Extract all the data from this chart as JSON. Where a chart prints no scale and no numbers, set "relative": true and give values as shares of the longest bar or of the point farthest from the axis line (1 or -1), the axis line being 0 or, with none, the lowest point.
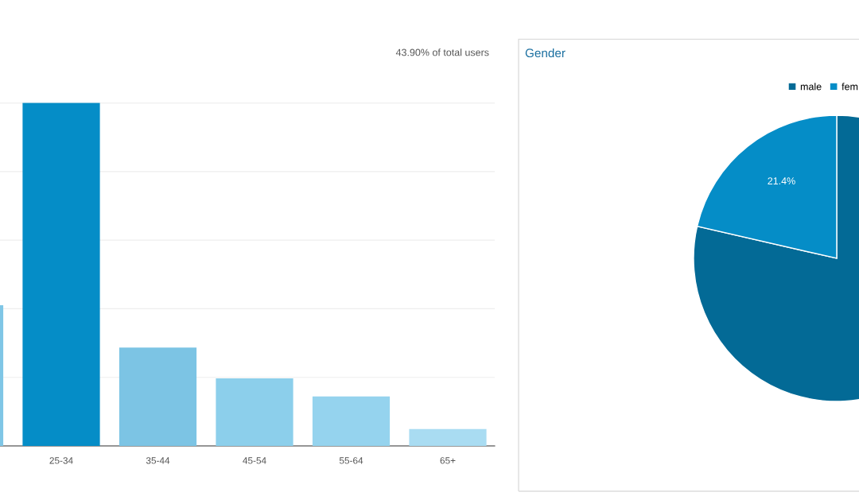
{
  "chart_data": [
    {
      "type": "bar",
      "relative": true,
      "categories": [
        null,
        "25-34",
        "35-44",
        "45-54",
        "55-64",
        "65+"
      ],
      "values": [
        0.41,
        1,
        0.287,
        0.197,
        0.144,
        0.049
      ],
      "colors": [
        "#7fc6e6",
        "#058dc7",
        "#7cc4e4",
        "#8ccfeb",
        "#95d3ee",
        "#a9dcf2"
      ],
      "grid": "y",
      "annotations": [
        "43.90% of total users"
      ]
    },
    {
      "type": "pie",
      "title": "Gender",
      "categories": [
        "male",
        "fem"
      ],
      "values": [
        78.6,
        21.4
      ],
      "colors": [
        "#036a96",
        "#058dc7"
      ],
      "value_labels": [
        null,
        "21.4%"
      ],
      "legend": "top"
    }
  ]
}
